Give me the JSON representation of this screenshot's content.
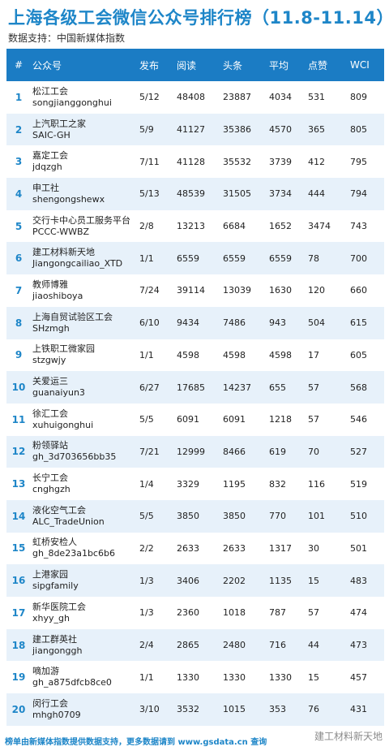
{
  "title": "上海各级工会微信公众号排行榜（11.8-11.14）",
  "subtitle": "数据支持：中国新媒体指数",
  "headers": [
    "#",
    "公众号",
    "发布",
    "阅读",
    "头条",
    "平均",
    "点赞",
    "WCI"
  ],
  "rows": [
    {
      "rank": "1",
      "name": "松江工会",
      "id": "songjianggonghui",
      "publish": "5/12",
      "read": "48408",
      "headline": "23887",
      "avg": "4034",
      "likes": "531",
      "wci": "809"
    },
    {
      "rank": "2",
      "name": "上汽职工之家",
      "id": "SAIC-GH",
      "publish": "5/9",
      "read": "41127",
      "headline": "35386",
      "avg": "4570",
      "likes": "365",
      "wci": "805"
    },
    {
      "rank": "3",
      "name": "嘉定工会",
      "id": "jdqzgh",
      "publish": "7/11",
      "read": "41128",
      "headline": "35532",
      "avg": "3739",
      "likes": "412",
      "wci": "795"
    },
    {
      "rank": "4",
      "name": "申工社",
      "id": "shengongshewx",
      "publish": "5/13",
      "read": "48539",
      "headline": "31505",
      "avg": "3734",
      "likes": "444",
      "wci": "794"
    },
    {
      "rank": "5",
      "name": "交行卡中心员工服务平台",
      "id": "PCCC-WWBZ",
      "publish": "2/8",
      "read": "13213",
      "headline": "6684",
      "avg": "1652",
      "likes": "3474",
      "wci": "743"
    },
    {
      "rank": "6",
      "name": "建工材料新天地",
      "id": "Jiangongcailiao_XTD",
      "publish": "1/1",
      "read": "6559",
      "headline": "6559",
      "avg": "6559",
      "likes": "78",
      "wci": "700"
    },
    {
      "rank": "7",
      "name": "教师博雅",
      "id": "jiaoshiboya",
      "publish": "7/24",
      "read": "39114",
      "headline": "13039",
      "avg": "1630",
      "likes": "120",
      "wci": "660"
    },
    {
      "rank": "8",
      "name": "上海自贸试验区工会",
      "id": "SHzmgh",
      "publish": "6/10",
      "read": "9434",
      "headline": "7486",
      "avg": "943",
      "likes": "504",
      "wci": "615"
    },
    {
      "rank": "9",
      "name": "上铁职工微家园",
      "id": "stzgwjy",
      "publish": "1/1",
      "read": "4598",
      "headline": "4598",
      "avg": "4598",
      "likes": "17",
      "wci": "605"
    },
    {
      "rank": "10",
      "name": "关爱运三",
      "id": "guanaiyun3",
      "publish": "6/27",
      "read": "17685",
      "headline": "14237",
      "avg": "655",
      "likes": "57",
      "wci": "568"
    },
    {
      "rank": "11",
      "name": "徐汇工会",
      "id": "xuhuigonghui",
      "publish": "5/5",
      "read": "6091",
      "headline": "6091",
      "avg": "1218",
      "likes": "57",
      "wci": "546"
    },
    {
      "rank": "12",
      "name": "粉领驿站",
      "id": "gh_3d703656bb35",
      "publish": "7/21",
      "read": "12999",
      "headline": "8466",
      "avg": "619",
      "likes": "70",
      "wci": "527"
    },
    {
      "rank": "13",
      "name": "长宁工会",
      "id": "cnghgzh",
      "publish": "1/4",
      "read": "3329",
      "headline": "1195",
      "avg": "832",
      "likes": "116",
      "wci": "519"
    },
    {
      "rank": "14",
      "name": "液化空气工会",
      "id": "ALC_TradeUnion",
      "publish": "5/5",
      "read": "3850",
      "headline": "3850",
      "avg": "770",
      "likes": "101",
      "wci": "510"
    },
    {
      "rank": "15",
      "name": "虹桥安检人",
      "id": "gh_8de23a1bc6b6",
      "publish": "2/2",
      "read": "2633",
      "headline": "2633",
      "avg": "1317",
      "likes": "30",
      "wci": "501"
    },
    {
      "rank": "16",
      "name": "上港家园",
      "id": "sipgfamily",
      "publish": "1/3",
      "read": "3406",
      "headline": "2202",
      "avg": "1135",
      "likes": "15",
      "wci": "483"
    },
    {
      "rank": "17",
      "name": "新华医院工会",
      "id": "xhyy_gh",
      "publish": "1/3",
      "read": "2360",
      "headline": "1018",
      "avg": "787",
      "likes": "57",
      "wci": "474"
    },
    {
      "rank": "18",
      "name": "建工群英社",
      "id": "jiangonggh",
      "publish": "2/4",
      "read": "2865",
      "headline": "2480",
      "avg": "716",
      "likes": "44",
      "wci": "473"
    },
    {
      "rank": "19",
      "name": "嘀加游",
      "id": "gh_a875dfcb8ce0",
      "publish": "1/1",
      "read": "1330",
      "headline": "1330",
      "avg": "1330",
      "likes": "15",
      "wci": "457"
    },
    {
      "rank": "20",
      "name": "闵行工会",
      "id": "mhgh0709",
      "publish": "3/10",
      "read": "3532",
      "headline": "1015",
      "avg": "353",
      "likes": "76",
      "wci": "431"
    }
  ],
  "footer": {
    "text": "榜单由新媒体指数提供数据支持，更多数据请到",
    "link": "www.gsdata.cn",
    "suffix": "查询"
  },
  "watermark": "建工材料新天地"
}
